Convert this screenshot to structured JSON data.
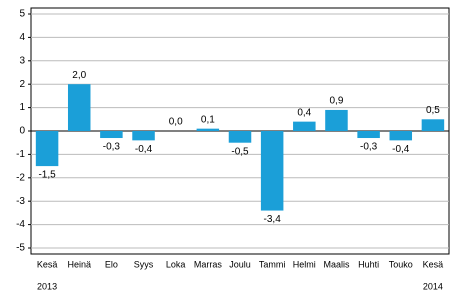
{
  "chart_data": {
    "type": "bar",
    "categories": [
      "Kesä",
      "Heinä",
      "Elo",
      "Syys",
      "Loka",
      "Marras",
      "Joulu",
      "Tammi",
      "Helmi",
      "Maalis",
      "Huhti",
      "Touko",
      "Kesä"
    ],
    "x_sublabels": [
      "2013",
      null,
      null,
      null,
      null,
      null,
      null,
      null,
      null,
      null,
      null,
      null,
      "2014"
    ],
    "values": [
      -1.5,
      2.0,
      -0.3,
      -0.4,
      0.0,
      0.1,
      -0.5,
      -3.4,
      0.4,
      0.9,
      -0.3,
      -0.4,
      0.5
    ],
    "value_labels": [
      "-1,5",
      "2,0",
      "-0,3",
      "-0,4",
      "0,0",
      "0,1",
      "-0,5",
      "-3,4",
      "0,4",
      "0,9",
      "-0,3",
      "-0,4",
      "0,5"
    ],
    "color": "#1b9fd8",
    "ylim": [
      -5,
      5
    ],
    "yticks": [
      -5,
      -4,
      -3,
      -2,
      -1,
      0,
      1,
      2,
      3,
      4,
      5
    ],
    "grid": true
  }
}
